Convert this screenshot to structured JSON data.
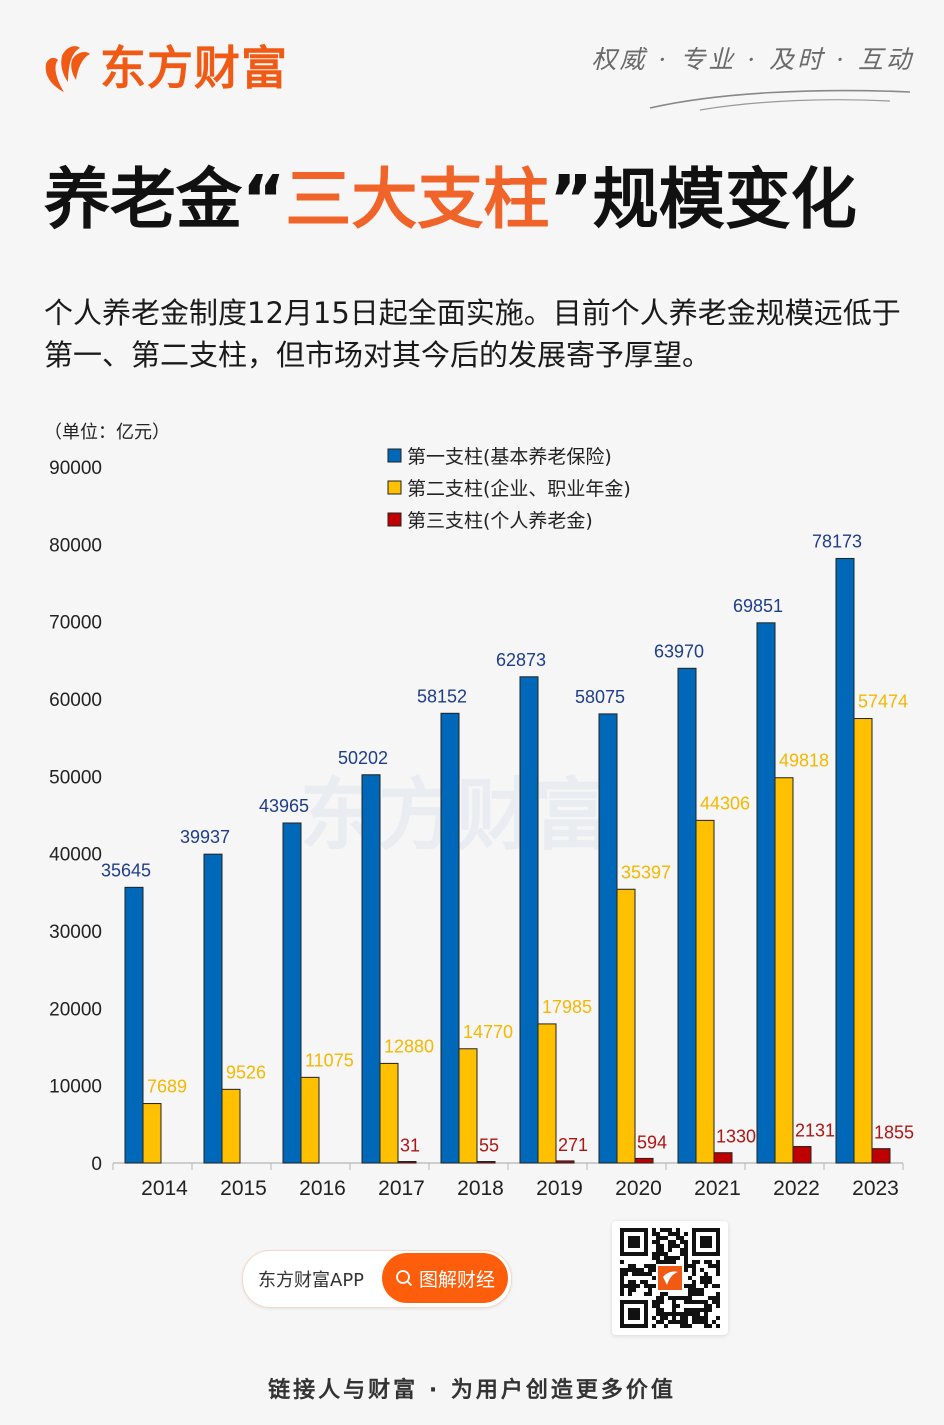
{
  "header": {
    "brand_name": "东方财富",
    "slogan": "权威 · 专业 · 及时 · 互动"
  },
  "title": {
    "prefix": "养老金",
    "open_quote": "“",
    "highlight": "三大支柱",
    "close_quote": "”",
    "suffix": "规模变化"
  },
  "subtitle": "个人养老金制度12月15日起全面实施。目前个人养老金规模远低于第一、第二支柱，但市场对其今后的发展寄予厚望。",
  "unit_label": "（单位：亿元）",
  "watermark": "东方财富",
  "colors": {
    "brand": "#f05a15",
    "pillar1": "#0068b8",
    "pillar2": "#ffc000",
    "pillar3": "#c00000",
    "label1": "#1f3d8a",
    "label2": "#f5b800",
    "label3": "#b01515"
  },
  "chart_data": {
    "type": "bar",
    "title": "养老金“三大支柱”规模变化",
    "xlabel": "",
    "ylabel": "（单位：亿元）",
    "ylim": [
      0,
      90000
    ],
    "yticks": [
      0,
      10000,
      20000,
      30000,
      40000,
      50000,
      60000,
      70000,
      80000,
      90000
    ],
    "grid": false,
    "legend_position": "top-center",
    "categories": [
      "2014",
      "2015",
      "2016",
      "2017",
      "2018",
      "2019",
      "2020",
      "2021",
      "2022",
      "2023"
    ],
    "series": [
      {
        "name": "第一支柱(基本养老保险)",
        "values": [
          35645,
          39937,
          43965,
          50202,
          58152,
          62873,
          58075,
          63970,
          69851,
          78173
        ]
      },
      {
        "name": "第二支柱(企业、职业年金)",
        "values": [
          7689,
          9526,
          11075,
          12880,
          14770,
          17985,
          35397,
          44306,
          49818,
          57474
        ]
      },
      {
        "name": "第三支柱(个人养老金)",
        "values": [
          null,
          null,
          null,
          31,
          55,
          271,
          594,
          1330,
          2131,
          1855
        ]
      }
    ]
  },
  "footer": {
    "app_name": "东方财富APP",
    "search_button": "图解财经",
    "slogan": "链接人与财富 · 为用户创造更多价值"
  }
}
